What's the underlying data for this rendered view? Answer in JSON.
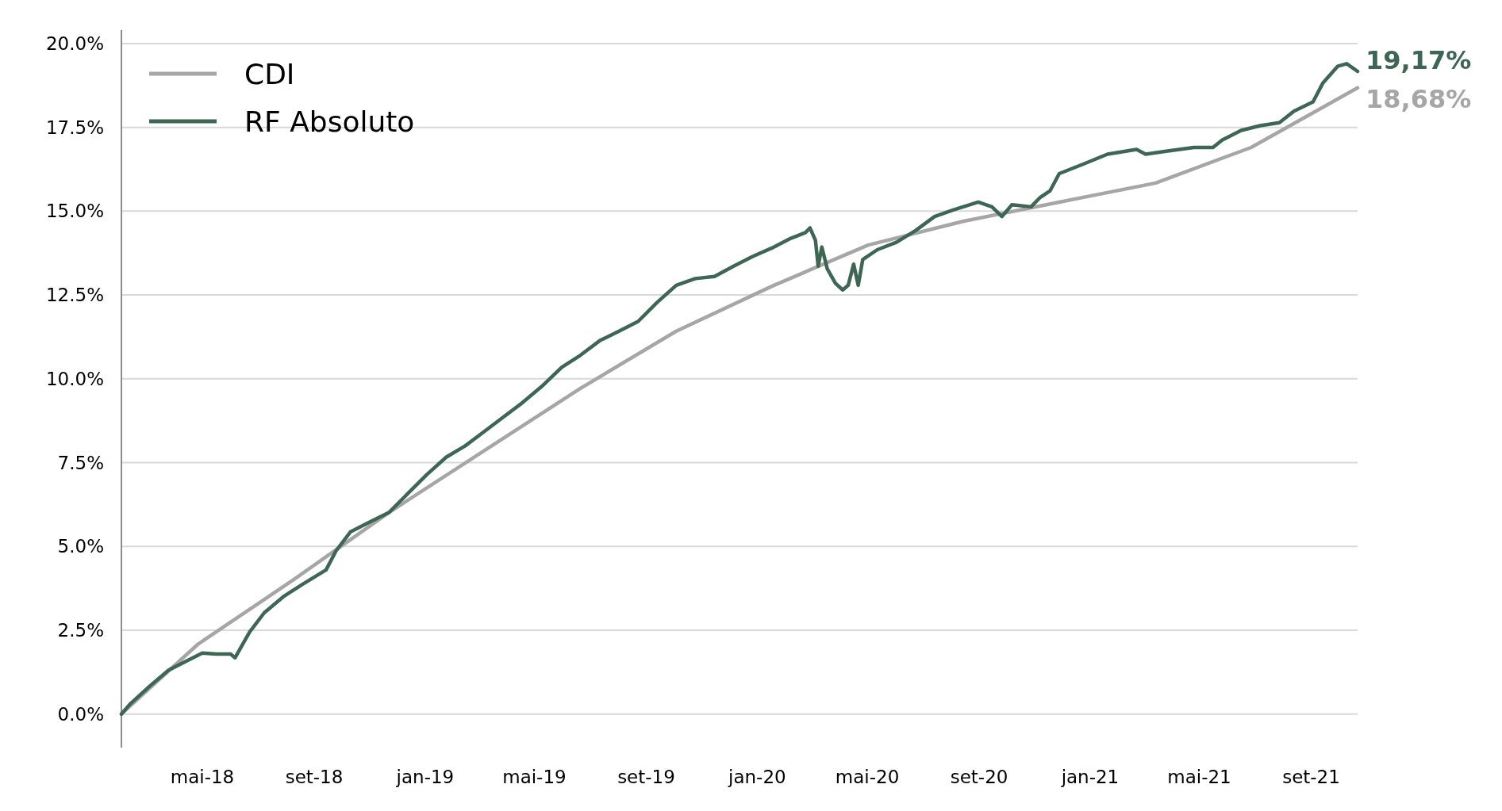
{
  "chart_data": {
    "type": "line",
    "legend": "top left",
    "grid": "y",
    "marker": "none",
    "line_style": "solid",
    "xlim": [
      "2018-02-01",
      "2021-10-22"
    ],
    "ylim": [
      -1,
      20.4
    ],
    "xticks": [
      {
        "value": "2018-05-01",
        "label": "mai-18"
      },
      {
        "value": "2018-09-01",
        "label": "set-18"
      },
      {
        "value": "2019-01-01",
        "label": "jan-19"
      },
      {
        "value": "2019-05-01",
        "label": "mai-19"
      },
      {
        "value": "2019-09-01",
        "label": "set-19"
      },
      {
        "value": "2020-01-01",
        "label": "jan-20"
      },
      {
        "value": "2020-05-01",
        "label": "mai-20"
      },
      {
        "value": "2020-09-01",
        "label": "set-20"
      },
      {
        "value": "2021-01-01",
        "label": "jan-21"
      },
      {
        "value": "2021-05-01",
        "label": "mai-21"
      },
      {
        "value": "2021-09-01",
        "label": "set-21"
      }
    ],
    "yticks": [
      {
        "value": 0,
        "label": "0.0%"
      },
      {
        "value": 2.5,
        "label": "2.5%"
      },
      {
        "value": 5,
        "label": "5.0%"
      },
      {
        "value": 7.5,
        "label": "7.5%"
      },
      {
        "value": 10,
        "label": "10.0%"
      },
      {
        "value": 12.5,
        "label": "12.5%"
      },
      {
        "value": 15,
        "label": "15.0%"
      },
      {
        "value": 17.5,
        "label": "17.5%"
      },
      {
        "value": 20,
        "label": "20.0%"
      }
    ],
    "series": [
      {
        "name": "CDI",
        "color": "#a6a6a6",
        "x": [
          "2018-02-01",
          "2018-04-26",
          "2018-08-10",
          "2018-11-22",
          "2019-03-07",
          "2019-06-21",
          "2019-10-04",
          "2020-01-17",
          "2020-05-02",
          "2020-08-15",
          "2020-11-28",
          "2021-03-14",
          "2021-06-27",
          "2021-10-22"
        ],
        "values": [
          0,
          2.08,
          4.02,
          6.01,
          7.86,
          9.72,
          11.42,
          12.76,
          13.99,
          14.7,
          15.27,
          15.84,
          16.9,
          18.68
        ],
        "value_labels": [
          null,
          null,
          null,
          null,
          null,
          null,
          null,
          null,
          null,
          null,
          null,
          null,
          null,
          "18,68%"
        ]
      },
      {
        "name": "RF Absoluto",
        "color": "#3d6654",
        "x": [
          "2018-02-01",
          "2018-02-11",
          "2018-03-04",
          "2018-03-25",
          "2018-04-15",
          "2018-05-01",
          "2018-05-16",
          "2018-06-01",
          "2018-06-06",
          "2018-06-12",
          "2018-06-22",
          "2018-07-08",
          "2018-07-29",
          "2018-08-19",
          "2018-09-14",
          "2018-09-25",
          "2018-10-11",
          "2018-11-01",
          "2018-11-22",
          "2018-12-13",
          "2019-01-03",
          "2019-01-24",
          "2019-02-14",
          "2019-03-07",
          "2019-03-28",
          "2019-04-18",
          "2019-05-09",
          "2019-05-31",
          "2019-06-21",
          "2019-07-12",
          "2019-08-02",
          "2019-08-23",
          "2019-09-13",
          "2019-10-04",
          "2019-10-25",
          "2019-11-15",
          "2019-12-06",
          "2019-12-27",
          "2020-01-17",
          "2020-02-07",
          "2020-02-23",
          "2020-02-28",
          "2020-03-05",
          "2020-03-08",
          "2020-03-12",
          "2020-03-18",
          "2020-03-27",
          "2020-04-04",
          "2020-04-10",
          "2020-04-16",
          "2020-04-21",
          "2020-04-26",
          "2020-05-12",
          "2020-06-02",
          "2020-06-23",
          "2020-07-14",
          "2020-08-04",
          "2020-08-31",
          "2020-09-15",
          "2020-09-26",
          "2020-10-07",
          "2020-10-28",
          "2020-11-07",
          "2020-11-18",
          "2020-11-28",
          "2020-12-25",
          "2021-01-20",
          "2021-02-21",
          "2021-03-03",
          "2021-03-24",
          "2021-04-25",
          "2021-05-16",
          "2021-05-26",
          "2021-06-16",
          "2021-07-07",
          "2021-07-28",
          "2021-08-13",
          "2021-09-03",
          "2021-09-14",
          "2021-09-30",
          "2021-10-10",
          "2021-10-22"
        ],
        "values": [
          0,
          0.31,
          0.83,
          1.31,
          1.6,
          1.82,
          1.79,
          1.79,
          1.68,
          1.97,
          2.45,
          3.02,
          3.5,
          3.87,
          4.3,
          4.87,
          5.44,
          5.73,
          6.01,
          6.58,
          7.15,
          7.66,
          8.0,
          8.43,
          8.86,
          9.29,
          9.77,
          10.34,
          10.71,
          11.14,
          11.42,
          11.71,
          12.28,
          12.79,
          12.99,
          13.05,
          13.36,
          13.65,
          13.9,
          14.19,
          14.36,
          14.5,
          14.13,
          13.36,
          13.93,
          13.28,
          12.85,
          12.65,
          12.79,
          13.42,
          12.79,
          13.56,
          13.85,
          14.07,
          14.42,
          14.84,
          15.04,
          15.27,
          15.13,
          14.84,
          15.19,
          15.13,
          15.41,
          15.61,
          16.12,
          16.41,
          16.7,
          16.84,
          16.7,
          16.78,
          16.9,
          16.9,
          17.12,
          17.41,
          17.55,
          17.64,
          17.98,
          18.26,
          18.83,
          19.32,
          19.4,
          19.17
        ],
        "value_labels": [
          null,
          null,
          null,
          null,
          null,
          null,
          null,
          null,
          null,
          null,
          null,
          null,
          null,
          null,
          null,
          null,
          null,
          null,
          null,
          null,
          null,
          null,
          null,
          null,
          null,
          null,
          null,
          null,
          null,
          null,
          null,
          null,
          null,
          null,
          null,
          null,
          null,
          null,
          null,
          null,
          null,
          null,
          null,
          null,
          null,
          null,
          null,
          null,
          null,
          null,
          null,
          null,
          null,
          null,
          null,
          null,
          null,
          null,
          null,
          null,
          null,
          null,
          null,
          null,
          null,
          null,
          null,
          null,
          null,
          null,
          null,
          null,
          null,
          null,
          null,
          null,
          null,
          null,
          null,
          null,
          null,
          "19,17%"
        ]
      }
    ]
  }
}
